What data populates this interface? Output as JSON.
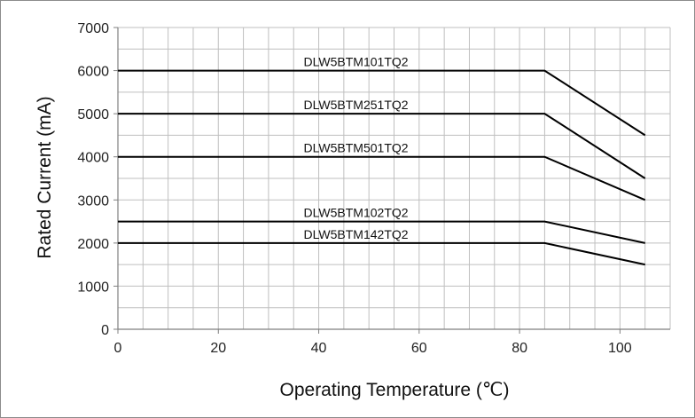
{
  "chart_data": {
    "type": "line",
    "title": "",
    "xlabel": "Operating Temperature (℃)",
    "ylabel": "Rated Current (mA)",
    "xlim": [
      0,
      110
    ],
    "ylim": [
      0,
      7000
    ],
    "x_ticks": [
      0,
      20,
      40,
      60,
      80,
      100
    ],
    "y_ticks": [
      0,
      1000,
      2000,
      3000,
      4000,
      5000,
      6000,
      7000
    ],
    "x_minor_step": 5,
    "y_minor_step": 500,
    "grid": true,
    "legend": "inline-labels",
    "colors": {
      "line": "#000000",
      "grid": "#bfbfbf",
      "axis": "#7f7f7f",
      "frame": "#8c8c8c"
    },
    "series": [
      {
        "name": "DLW5BTM101TQ2",
        "points": [
          [
            0,
            6000
          ],
          [
            85,
            6000
          ],
          [
            105,
            4500
          ]
        ]
      },
      {
        "name": "DLW5BTM251TQ2",
        "points": [
          [
            0,
            5000
          ],
          [
            85,
            5000
          ],
          [
            105,
            3500
          ]
        ]
      },
      {
        "name": "DLW5BTM501TQ2",
        "points": [
          [
            0,
            4000
          ],
          [
            85,
            4000
          ],
          [
            105,
            3000
          ]
        ]
      },
      {
        "name": "DLW5BTM102TQ2",
        "points": [
          [
            0,
            2500
          ],
          [
            85,
            2500
          ],
          [
            105,
            2000
          ]
        ]
      },
      {
        "name": "DLW5BTM142TQ2",
        "points": [
          [
            0,
            2000
          ],
          [
            85,
            2000
          ],
          [
            105,
            1500
          ]
        ]
      }
    ]
  }
}
